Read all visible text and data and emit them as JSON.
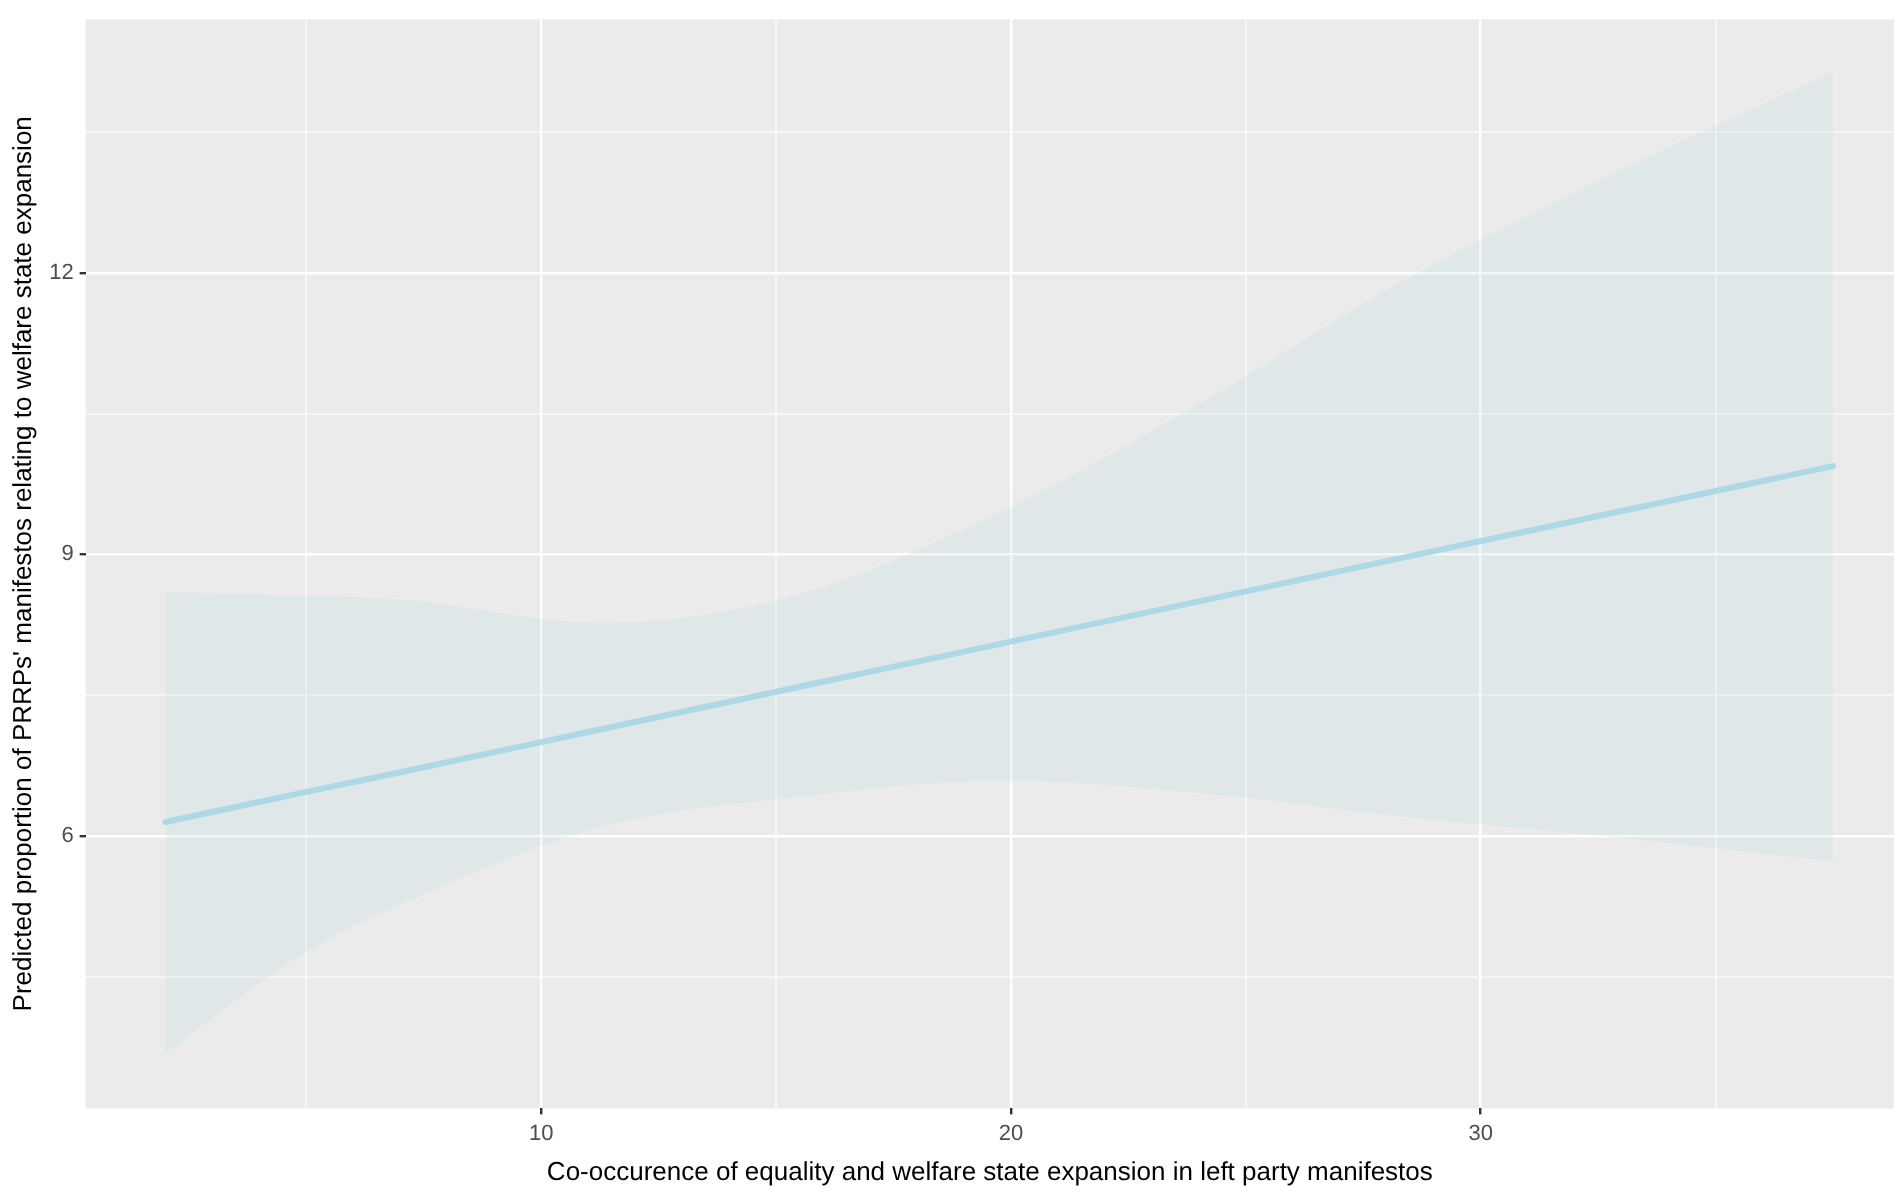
{
  "chart_data": {
    "type": "line",
    "xlabel": "Co-occurence of equality and welfare state expansion in left party manifestos",
    "ylabel": "Predicted proportion of PRRPs' manifestos relating to welfare state expansion",
    "x": [
      2,
      4.9,
      7,
      11.3,
      15.5,
      19.8,
      24,
      28.3,
      32.6,
      37.5
    ],
    "series": [
      {
        "color": "#add8e6",
        "values": [
          6.15,
          6.46,
          6.68,
          7.14,
          7.59,
          8.05,
          8.5,
          8.96,
          9.42,
          9.94
        ],
        "lower": [
          3.69,
          4.74,
          5.27,
          6.1,
          6.42,
          6.59,
          6.46,
          6.21,
          6.0,
          5.73
        ],
        "upper": [
          8.6,
          8.56,
          8.52,
          8.27,
          8.58,
          9.46,
          10.6,
          11.9,
          13.0,
          14.14
        ]
      }
    ],
    "xlim": [
      0.3,
      38.8
    ],
    "ylim": [
      3.1,
      14.7
    ],
    "xticks": [
      {
        "value": 5,
        "label": null
      },
      10,
      {
        "value": 15,
        "label": null
      },
      20,
      {
        "value": 25,
        "label": null
      },
      30,
      {
        "value": 35,
        "label": null
      }
    ],
    "yticks": [
      {
        "value": 4.5,
        "label": null
      },
      6,
      {
        "value": 7.5,
        "label": null
      },
      9,
      {
        "value": 10.5,
        "label": null
      },
      12,
      {
        "value": 13.5,
        "label": null
      }
    ],
    "grid": true,
    "legend": false,
    "marker": "none",
    "line_style": "solid"
  }
}
